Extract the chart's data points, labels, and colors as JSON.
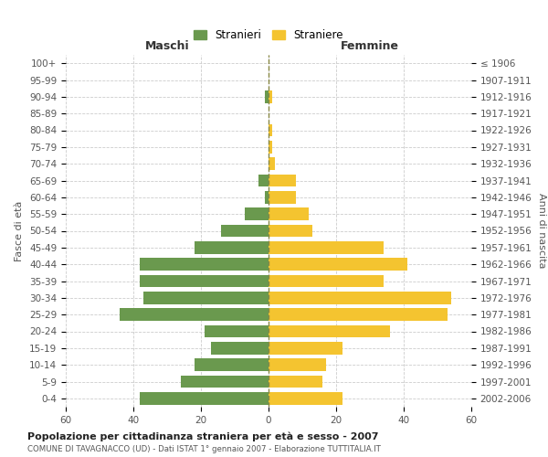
{
  "age_groups": [
    "100+",
    "95-99",
    "90-94",
    "85-89",
    "80-84",
    "75-79",
    "70-74",
    "65-69",
    "60-64",
    "55-59",
    "50-54",
    "45-49",
    "40-44",
    "35-39",
    "30-34",
    "25-29",
    "20-24",
    "15-19",
    "10-14",
    "5-9",
    "0-4"
  ],
  "birth_years": [
    "≤ 1906",
    "1907-1911",
    "1912-1916",
    "1917-1921",
    "1922-1926",
    "1927-1931",
    "1932-1936",
    "1937-1941",
    "1942-1946",
    "1947-1951",
    "1952-1956",
    "1957-1961",
    "1962-1966",
    "1967-1971",
    "1972-1976",
    "1977-1981",
    "1982-1986",
    "1987-1991",
    "1992-1996",
    "1997-2001",
    "2002-2006"
  ],
  "maschi": [
    0,
    0,
    1,
    0,
    0,
    0,
    0,
    3,
    1,
    7,
    14,
    22,
    38,
    38,
    37,
    44,
    19,
    17,
    22,
    26,
    38
  ],
  "femmine": [
    0,
    0,
    1,
    0,
    1,
    1,
    2,
    8,
    8,
    12,
    13,
    34,
    41,
    34,
    54,
    53,
    36,
    22,
    17,
    16,
    22
  ],
  "male_color": "#6a994e",
  "female_color": "#f4c430",
  "title": "Popolazione per cittadinanza straniera per età e sesso - 2007",
  "subtitle": "COMUNE DI TAVAGNACCO (UD) - Dati ISTAT 1° gennaio 2007 - Elaborazione TUTTITALIA.IT",
  "ylabel_left": "Fasce di età",
  "ylabel_right": "Anni di nascita",
  "xlabel_left": "Maschi",
  "xlabel_right": "Femmine",
  "legend_male": "Stranieri",
  "legend_female": "Straniere",
  "xlim": 60,
  "bg_color": "#ffffff",
  "grid_color": "#cccccc"
}
